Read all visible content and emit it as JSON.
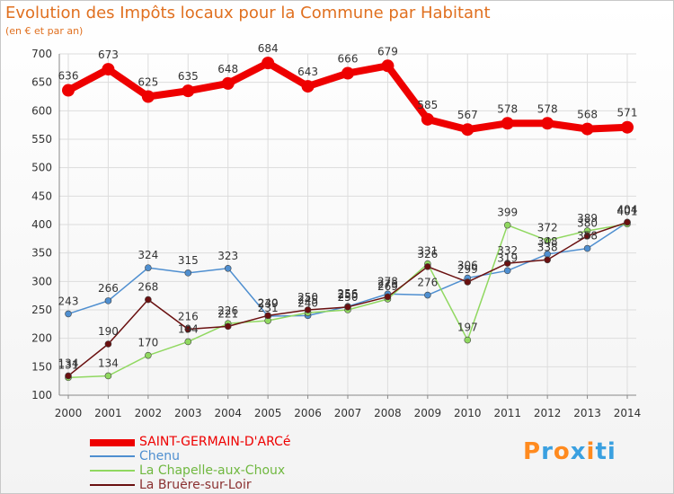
{
  "chart_data": {
    "type": "line",
    "title": "Evolution des Impôts locaux pour la Commune par Habitant",
    "subtitle": "(en € et par an)",
    "x": [
      "2000",
      "2001",
      "2002",
      "2003",
      "2004",
      "2005",
      "2006",
      "2007",
      "2008",
      "2009",
      "2010",
      "2011",
      "2012",
      "2013",
      "2014"
    ],
    "ylim": [
      100,
      700
    ],
    "yticks": [
      100,
      150,
      200,
      250,
      300,
      350,
      400,
      450,
      500,
      550,
      600,
      650,
      700
    ],
    "grid": true,
    "legend_placement": "bottom-left",
    "series": [
      {
        "name": "SAINT-GERMAIN-D'ARCé",
        "color": "#ee0000",
        "values": [
          636,
          673,
          625,
          635,
          648,
          684,
          643,
          666,
          679,
          585,
          567,
          578,
          578,
          568,
          571
        ]
      },
      {
        "name": "Chenu",
        "color": "#4f8fd0",
        "values": [
          243,
          266,
          324,
          315,
          323,
          239,
          240,
          256,
          278,
          276,
          306,
          319,
          348,
          358,
          404
        ]
      },
      {
        "name": "La Chapelle-aux-Choux",
        "color": "#90d860",
        "values": [
          131,
          134,
          170,
          194,
          226,
          231,
          245,
          250,
          269,
          331,
          197,
          399,
          372,
          389,
          401
        ]
      },
      {
        "name": "La Bruère-sur-Loir",
        "color": "#6a1010",
        "values": [
          134,
          190,
          268,
          216,
          221,
          240,
          250,
          255,
          273,
          326,
          299,
          332,
          338,
          380,
          404
        ]
      }
    ]
  },
  "logo": {
    "text": "Proxiti",
    "colors": [
      "#ff8a1e",
      "#3aa0e0",
      "#ff8a1e",
      "#3aa0e0",
      "#ff8a1e",
      "#3aa0e0",
      "#3aa0e0"
    ]
  }
}
